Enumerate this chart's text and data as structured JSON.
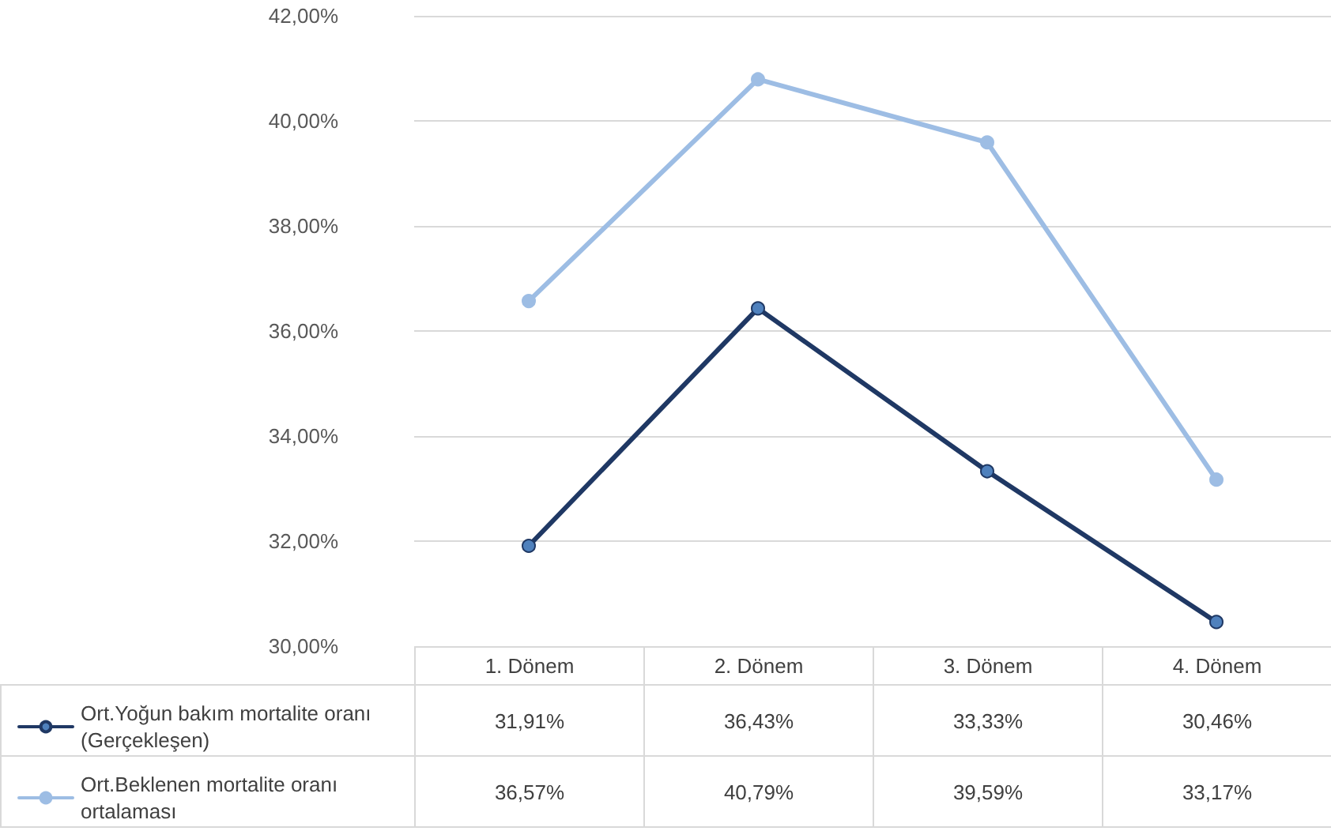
{
  "chart_data": {
    "type": "line",
    "categories": [
      "1. Dönem",
      "2. Dönem",
      "3. Dönem",
      "4. Dönem"
    ],
    "series": [
      {
        "name": "Ort.Yoğun bakım mortalite oranı (Gerçekleşen)",
        "color": "#1f3864",
        "values": [
          31.91,
          36.43,
          33.33,
          30.46
        ],
        "value_labels": [
          "31,91%",
          "36,43%",
          "33,33%",
          "30,46%"
        ]
      },
      {
        "name": "Ort.Beklenen mortalite oranı ortalaması",
        "color": "#9dbde4",
        "values": [
          36.57,
          40.79,
          39.59,
          33.17
        ],
        "value_labels": [
          "36,57%",
          "40,79%",
          "39,59%",
          "33,17%"
        ]
      }
    ],
    "ylim": [
      30,
      42
    ],
    "yticks": [
      {
        "value": 30,
        "label": "30,00%"
      },
      {
        "value": 32,
        "label": "32,00%"
      },
      {
        "value": 34,
        "label": "34,00%"
      },
      {
        "value": 36,
        "label": "36,00%"
      },
      {
        "value": 38,
        "label": "38,00%"
      },
      {
        "value": 40,
        "label": "40,00%"
      },
      {
        "value": 42,
        "label": "42,00%"
      }
    ],
    "grid": "y",
    "legend": "bottom left",
    "marker": "circle",
    "line_style": "solid"
  }
}
